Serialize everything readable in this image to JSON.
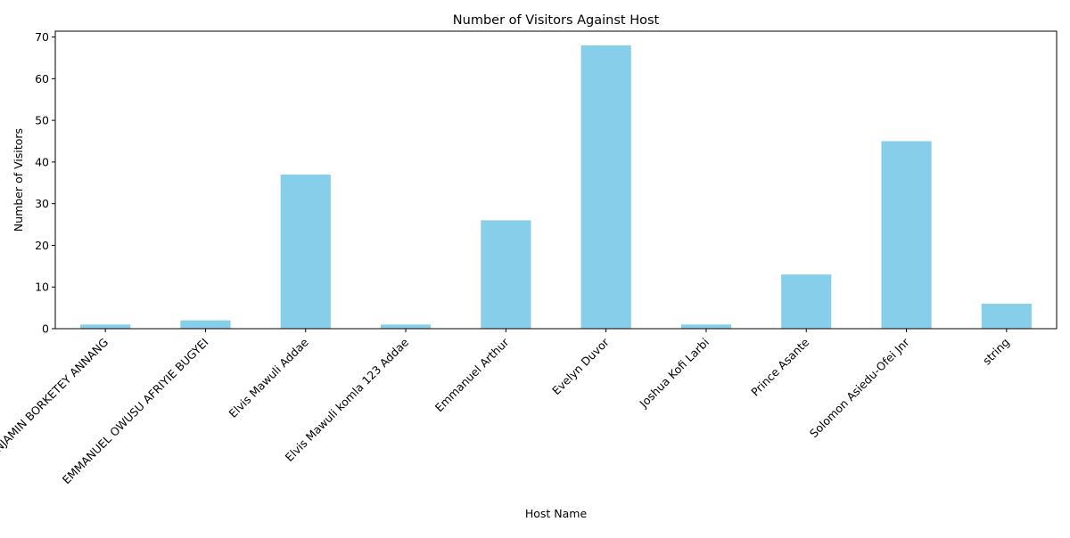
{
  "colors": {
    "bar": "#87ceeb",
    "axis": "#000000",
    "background": "#ffffff"
  },
  "chart_data": {
    "type": "bar",
    "title": "Number of Visitors Against Host",
    "xlabel": "Host Name",
    "ylabel": "Number of Visitors",
    "categories": [
      "BENJAMIN BORKETEY ANNANG",
      "EMMANUEL OWUSU AFRIYIE BUGYEI",
      "Elvis Mawuli Addae",
      "Elvis Mawuli komla 123 Addae",
      "Emmanuel  Arthur",
      "Evelyn Duvor",
      "Joshua Kofi Larbi",
      "Prince  Asante",
      "Solomon  Asiedu-Ofei Jnr",
      "string"
    ],
    "values": [
      1,
      2,
      37,
      1,
      26,
      68,
      1,
      13,
      45,
      6
    ],
    "ylim": [
      0,
      71.4
    ],
    "yticks": [
      0,
      10,
      20,
      30,
      40,
      50,
      60,
      70
    ],
    "grid": false,
    "legend": "none"
  }
}
